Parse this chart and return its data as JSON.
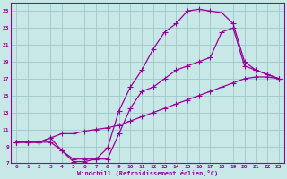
{
  "xlabel": "Windchill (Refroidissement éolien,°C)",
  "bg_color": "#c8e8e8",
  "grid_color": "#a0c8c8",
  "line_color": "#990099",
  "xlim": [
    -0.5,
    23.5
  ],
  "ylim": [
    7,
    26
  ],
  "xticks": [
    0,
    1,
    2,
    3,
    4,
    5,
    6,
    7,
    8,
    9,
    10,
    11,
    12,
    13,
    14,
    15,
    16,
    17,
    18,
    19,
    20,
    21,
    22,
    23
  ],
  "yticks": [
    7,
    9,
    11,
    13,
    15,
    17,
    19,
    21,
    23,
    25
  ],
  "curve1_x": [
    0,
    1,
    2,
    3,
    4,
    5,
    6,
    7,
    8,
    9,
    10,
    11,
    12,
    13,
    14,
    15,
    16,
    17,
    18,
    19,
    20,
    21,
    22,
    23
  ],
  "curve1_y": [
    9.5,
    9.5,
    9.5,
    10.0,
    10.5,
    10.5,
    10.8,
    11.0,
    11.2,
    11.5,
    12.0,
    12.5,
    13.0,
    13.5,
    14.0,
    14.5,
    15.0,
    15.5,
    16.0,
    16.5,
    17.0,
    17.2,
    17.2,
    17.0
  ],
  "curve2_x": [
    0,
    1,
    2,
    3,
    4,
    5,
    6,
    7,
    8,
    9,
    10,
    11,
    12,
    13,
    14,
    15,
    16,
    17,
    18,
    19,
    20,
    21,
    22,
    23
  ],
  "curve2_y": [
    9.5,
    9.5,
    9.5,
    9.5,
    8.5,
    7.2,
    7.2,
    7.5,
    8.8,
    13.2,
    16.0,
    18.0,
    20.5,
    22.5,
    23.5,
    25.0,
    25.2,
    25.0,
    24.8,
    23.5,
    19.0,
    18.0,
    17.5,
    17.0
  ],
  "curve3_x": [
    0,
    1,
    2,
    3,
    4,
    5,
    6,
    7,
    8,
    9,
    10,
    11,
    12,
    13,
    14,
    15,
    16,
    17,
    18,
    19,
    20,
    21,
    22,
    23
  ],
  "curve3_y": [
    9.5,
    9.5,
    9.5,
    10.0,
    8.5,
    7.5,
    7.5,
    7.5,
    7.5,
    10.5,
    13.5,
    15.5,
    16.0,
    17.0,
    18.0,
    18.5,
    19.0,
    19.5,
    22.5,
    23.0,
    18.5,
    18.0,
    17.5,
    17.0
  ],
  "marker": "+",
  "markersize": 4,
  "linewidth": 0.9
}
